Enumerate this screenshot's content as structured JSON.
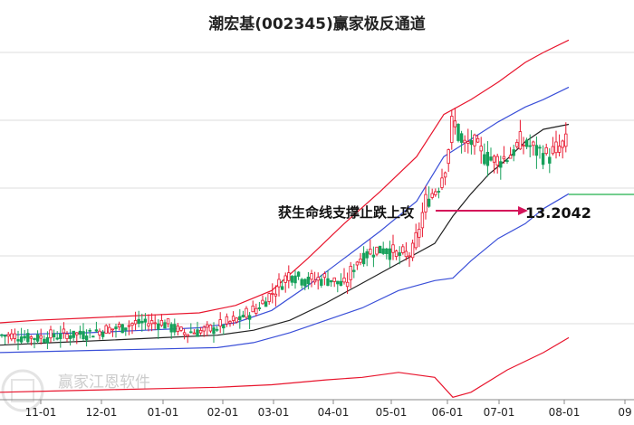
{
  "chart_data": {
    "type": "candlestick",
    "title": "潮宏基(002345)赢家极反通道",
    "x_ticks": [
      "11-01",
      "12-01",
      "01-01",
      "02-01",
      "03-01",
      "04-01",
      "05-01",
      "06-01",
      "07-01",
      "08-01",
      "09"
    ],
    "y_range": [
      2.5,
      16.5
    ],
    "grid": "horizontal",
    "annotation": {
      "text": "获生命线支撑止跌上攻",
      "value": "13.2042"
    },
    "watermark": "赢家江恩软件",
    "colors": {
      "up": "#e8152d",
      "down": "#16a05a",
      "upper_band": "#e8152d",
      "mid_band": "#3a4fd8",
      "support": "#222222",
      "arrow": "#d4145a",
      "current": "#22b14c",
      "grid": "#dddddd"
    },
    "series": [
      {
        "role": "upper_band",
        "points": [
          [
            0,
            5.6
          ],
          [
            40,
            5.7
          ],
          [
            100,
            5.8
          ],
          [
            160,
            5.9
          ],
          [
            220,
            6.0
          ],
          [
            260,
            6.3
          ],
          [
            300,
            6.9
          ],
          [
            340,
            8.2
          ],
          [
            380,
            9.6
          ],
          [
            420,
            10.9
          ],
          [
            460,
            12.3
          ],
          [
            490,
            14.0
          ],
          [
            520,
            14.6
          ],
          [
            550,
            15.3
          ],
          [
            580,
            16.1
          ],
          [
            600,
            16.5
          ],
          [
            628,
            17.0
          ]
        ]
      },
      {
        "role": "mid_band",
        "points": [
          [
            0,
            5.1
          ],
          [
            40,
            5.15
          ],
          [
            100,
            5.2
          ],
          [
            160,
            5.3
          ],
          [
            220,
            5.4
          ],
          [
            260,
            5.6
          ],
          [
            300,
            6.1
          ],
          [
            340,
            7.1
          ],
          [
            380,
            8.2
          ],
          [
            420,
            9.3
          ],
          [
            460,
            10.5
          ],
          [
            490,
            12.3
          ],
          [
            520,
            13.0
          ],
          [
            550,
            13.7
          ],
          [
            580,
            14.3
          ],
          [
            600,
            14.6
          ],
          [
            628,
            15.1
          ]
        ]
      },
      {
        "role": "support",
        "points": [
          [
            0,
            4.7
          ],
          [
            60,
            4.8
          ],
          [
            120,
            4.9
          ],
          [
            180,
            5.0
          ],
          [
            240,
            5.1
          ],
          [
            280,
            5.3
          ],
          [
            320,
            5.7
          ],
          [
            360,
            6.4
          ],
          [
            400,
            7.2
          ],
          [
            440,
            8.0
          ],
          [
            480,
            8.8
          ],
          [
            500,
            9.9
          ],
          [
            520,
            10.8
          ],
          [
            540,
            11.6
          ],
          [
            560,
            12.2
          ],
          [
            580,
            12.9
          ],
          [
            600,
            13.4
          ],
          [
            628,
            13.6
          ]
        ]
      },
      {
        "role": "lower_band",
        "points": [
          [
            0,
            4.4
          ],
          [
            60,
            4.45
          ],
          [
            120,
            4.5
          ],
          [
            180,
            4.55
          ],
          [
            240,
            4.6
          ],
          [
            280,
            4.8
          ],
          [
            320,
            5.2
          ],
          [
            360,
            5.7
          ],
          [
            400,
            6.2
          ],
          [
            440,
            6.9
          ],
          [
            480,
            7.3
          ],
          [
            500,
            7.4
          ],
          [
            520,
            8.1
          ],
          [
            550,
            9.0
          ],
          [
            580,
            9.6
          ],
          [
            600,
            10.2
          ],
          [
            628,
            10.8
          ]
        ]
      },
      {
        "role": "lowest_band",
        "points": [
          [
            0,
            2.8
          ],
          [
            60,
            2.85
          ],
          [
            120,
            2.9
          ],
          [
            180,
            2.95
          ],
          [
            240,
            3.0
          ],
          [
            300,
            3.1
          ],
          [
            360,
            3.3
          ],
          [
            400,
            3.4
          ],
          [
            440,
            3.6
          ],
          [
            480,
            3.4
          ],
          [
            500,
            2.6
          ],
          [
            520,
            2.8
          ],
          [
            560,
            3.7
          ],
          [
            600,
            4.4
          ],
          [
            628,
            5.0
          ]
        ]
      },
      {
        "role": "close",
        "points": [
          [
            0,
            5.1
          ],
          [
            40,
            5.0
          ],
          [
            70,
            5.1
          ],
          [
            100,
            5.2
          ],
          [
            130,
            5.4
          ],
          [
            150,
            5.6
          ],
          [
            180,
            5.6
          ],
          [
            200,
            5.2
          ],
          [
            230,
            5.3
          ],
          [
            260,
            5.7
          ],
          [
            280,
            6.1
          ],
          [
            300,
            6.8
          ],
          [
            320,
            7.6
          ],
          [
            340,
            7.3
          ],
          [
            360,
            7.4
          ],
          [
            380,
            7.1
          ],
          [
            395,
            8.2
          ],
          [
            410,
            8.5
          ],
          [
            425,
            8.6
          ],
          [
            440,
            8.3
          ],
          [
            455,
            8.4
          ],
          [
            470,
            10.5
          ],
          [
            485,
            11.2
          ],
          [
            493,
            12.2
          ],
          [
            500,
            13.9
          ],
          [
            510,
            12.7
          ],
          [
            520,
            12.9
          ],
          [
            530,
            12.5
          ],
          [
            545,
            12.1
          ],
          [
            560,
            12.3
          ],
          [
            575,
            12.9
          ],
          [
            590,
            12.6
          ],
          [
            605,
            12.3
          ],
          [
            615,
            12.6
          ],
          [
            628,
            12.9
          ]
        ]
      }
    ]
  }
}
